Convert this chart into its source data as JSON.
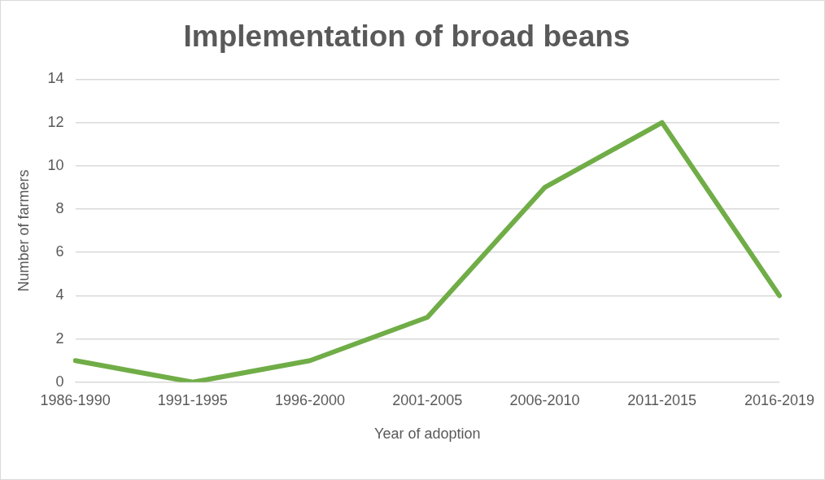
{
  "chart_data": {
    "type": "line",
    "title": "Implementation of broad beans",
    "xlabel": "Year of adoption",
    "ylabel": "Number of farmers",
    "categories": [
      "1986-1990",
      "1991-1995",
      "1996-2000",
      "2001-2005",
      "2006-2010",
      "2011-2015",
      "2016-2019"
    ],
    "series": [
      {
        "color": "#70ad47",
        "values": [
          1,
          0,
          1,
          3,
          9,
          12,
          4
        ]
      }
    ],
    "ylim": [
      0,
      14
    ],
    "yticks": [
      0,
      2,
      4,
      6,
      8,
      10,
      12,
      14
    ],
    "grid": "y",
    "legend": false,
    "marker": "none",
    "line_style": "solid"
  }
}
